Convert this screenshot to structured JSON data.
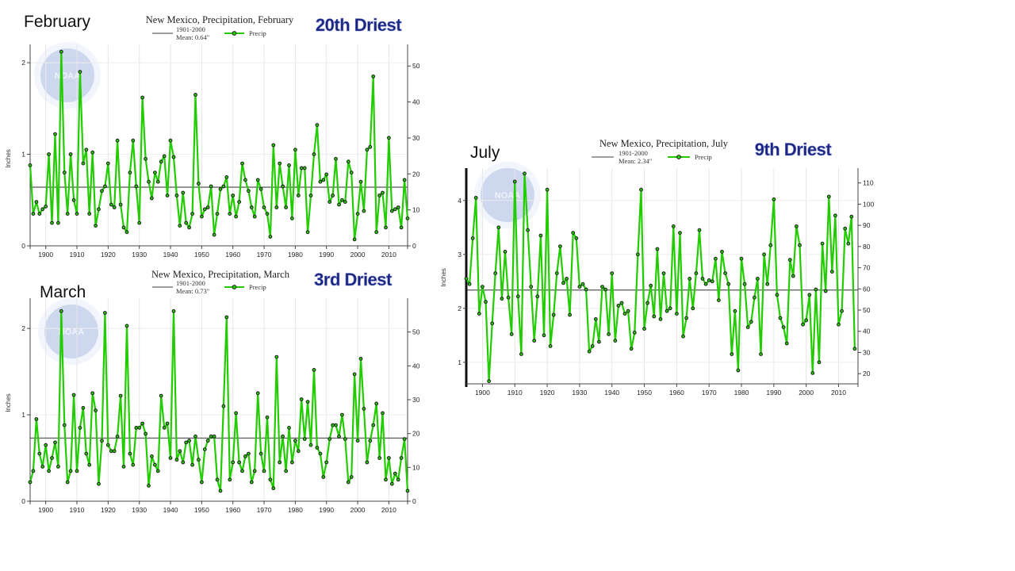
{
  "slide": {
    "labels": {
      "feb": "February",
      "mar": "March",
      "jul": "July"
    }
  },
  "colors": {
    "series": "#22cc00",
    "mean": "#666666",
    "marker": "#1a1a1a",
    "rank": "#1a237e"
  },
  "chart_data": [
    {
      "id": "feb",
      "type": "line",
      "title": "New Mexico, Precipitation, February",
      "rank_label": "20th Driest",
      "legend": {
        "mean_line": "1901-2000",
        "mean_value": "Mean: 0.64\"",
        "series": "Precip"
      },
      "ylabel": "Inches",
      "ylim": [
        0,
        2.2
      ],
      "yticks": [
        0,
        1,
        2
      ],
      "y2lim": [
        0,
        56
      ],
      "y2ticks": [
        0,
        10,
        20,
        30,
        40,
        50
      ],
      "xlim": [
        1895,
        2016
      ],
      "xticks": [
        1900,
        1910,
        1920,
        1930,
        1940,
        1950,
        1960,
        1970,
        1980,
        1990,
        2000,
        2010
      ],
      "mean": 0.64,
      "start_year": 1895,
      "values": [
        0.88,
        0.35,
        0.48,
        0.35,
        0.4,
        0.43,
        1.0,
        0.25,
        1.22,
        0.25,
        2.12,
        0.8,
        0.35,
        1.0,
        0.5,
        0.35,
        1.9,
        0.9,
        1.05,
        0.35,
        1.02,
        0.22,
        0.4,
        0.6,
        0.65,
        0.9,
        0.45,
        0.42,
        1.15,
        0.45,
        0.2,
        0.15,
        0.8,
        1.15,
        0.65,
        0.25,
        1.62,
        0.95,
        0.7,
        0.52,
        0.8,
        0.7,
        0.92,
        0.98,
        0.55,
        1.15,
        0.97,
        0.55,
        0.22,
        0.58,
        0.25,
        0.2,
        0.35,
        1.65,
        0.68,
        0.32,
        0.4,
        0.42,
        0.65,
        0.12,
        0.35,
        0.62,
        0.65,
        0.75,
        0.35,
        0.55,
        0.32,
        0.48,
        0.9,
        0.72,
        0.6,
        0.42,
        0.32,
        0.72,
        0.62,
        0.42,
        0.35,
        0.1,
        1.1,
        0.42,
        0.9,
        0.65,
        0.42,
        0.88,
        0.3,
        1.05,
        0.55,
        0.85,
        0.85,
        0.15,
        0.55,
        1.0,
        1.32,
        0.7,
        0.72,
        0.78,
        0.48,
        0.55,
        0.95,
        0.45,
        0.5,
        0.48,
        0.92,
        0.8,
        0.07,
        0.35,
        0.7,
        0.38,
        1.05,
        1.08,
        1.85,
        0.15,
        0.55,
        0.58,
        0.2,
        1.18,
        0.38,
        0.4,
        0.42,
        0.2,
        0.72,
        0.3
      ]
    },
    {
      "id": "mar",
      "type": "line",
      "title": "New Mexico, Precipitation, March",
      "rank_label": "3rd Driest",
      "legend": {
        "mean_line": "1901-2000",
        "mean_value": "Mean: 0.73\"",
        "series": "Precip"
      },
      "ylabel": "Inches",
      "ylim": [
        0,
        2.35
      ],
      "yticks": [
        0,
        1,
        2
      ],
      "y2lim": [
        0,
        60
      ],
      "y2ticks": [
        0,
        10,
        20,
        30,
        40,
        50
      ],
      "xlim": [
        1895,
        2016
      ],
      "xticks": [
        1900,
        1910,
        1920,
        1930,
        1940,
        1950,
        1960,
        1970,
        1980,
        1990,
        2000,
        2010
      ],
      "mean": 0.73,
      "start_year": 1895,
      "values": [
        0.22,
        0.35,
        0.95,
        0.55,
        0.4,
        0.65,
        0.35,
        0.5,
        0.68,
        0.4,
        2.2,
        0.88,
        0.22,
        0.35,
        1.23,
        0.35,
        0.85,
        1.08,
        0.55,
        0.42,
        1.25,
        1.05,
        0.2,
        0.7,
        2.18,
        0.65,
        0.58,
        0.58,
        0.75,
        1.22,
        0.4,
        2.03,
        0.55,
        0.42,
        0.85,
        0.85,
        0.9,
        0.78,
        0.18,
        0.52,
        0.42,
        0.35,
        1.22,
        0.85,
        0.9,
        0.5,
        2.2,
        0.48,
        0.58,
        0.45,
        0.68,
        0.7,
        0.42,
        0.75,
        0.48,
        0.22,
        0.6,
        0.7,
        0.75,
        0.75,
        0.25,
        0.12,
        1.1,
        2.13,
        0.25,
        0.45,
        1.02,
        0.45,
        0.35,
        0.52,
        0.55,
        0.22,
        0.35,
        1.25,
        0.55,
        0.35,
        0.97,
        0.25,
        0.15,
        1.67,
        0.45,
        0.75,
        0.35,
        0.85,
        0.45,
        0.7,
        0.58,
        1.18,
        0.72,
        1.15,
        0.65,
        1.52,
        0.62,
        0.55,
        0.28,
        0.45,
        0.72,
        0.88,
        0.88,
        0.75,
        1.0,
        0.72,
        0.22,
        0.28,
        1.47,
        0.7,
        1.65,
        1.07,
        0.45,
        0.7,
        0.88,
        1.13,
        0.5,
        1.02,
        0.25,
        0.5,
        0.2,
        0.32,
        0.25,
        0.5,
        0.72,
        0.12
      ]
    },
    {
      "id": "jul",
      "type": "line",
      "title": "New Mexico, Precipitation, July",
      "rank_label": "9th Driest",
      "legend": {
        "mean_line": "1901-2000",
        "mean_value": "Mean: 2.34\"",
        "series": "Precip"
      },
      "ylabel": "Inches",
      "ylim": [
        0.6,
        4.6
      ],
      "yticks": [
        1,
        2,
        3,
        4
      ],
      "y2lim": [
        15.2,
        117
      ],
      "y2ticks": [
        20,
        30,
        40,
        50,
        60,
        70,
        80,
        90,
        100,
        110
      ],
      "xlim": [
        1895,
        2016
      ],
      "xticks": [
        1900,
        1910,
        1920,
        1930,
        1940,
        1950,
        1960,
        1970,
        1980,
        1990,
        2000,
        2010
      ],
      "mean": 2.34,
      "start_year": 1895,
      "values": [
        2.55,
        2.45,
        3.3,
        4.05,
        1.9,
        2.4,
        2.12,
        0.65,
        1.72,
        2.65,
        3.5,
        2.18,
        3.05,
        2.2,
        1.52,
        4.35,
        2.22,
        1.15,
        4.5,
        3.45,
        2.4,
        1.4,
        2.22,
        3.35,
        1.5,
        4.2,
        1.3,
        1.88,
        2.65,
        3.15,
        2.47,
        2.55,
        1.88,
        3.4,
        3.3,
        2.4,
        2.45,
        2.35,
        1.2,
        1.3,
        1.8,
        1.38,
        2.4,
        2.35,
        1.52,
        2.65,
        1.4,
        2.05,
        2.1,
        1.9,
        1.95,
        1.25,
        1.55,
        3.0,
        4.2,
        1.62,
        2.1,
        2.42,
        1.85,
        3.1,
        1.8,
        2.65,
        1.95,
        2.0,
        3.52,
        1.9,
        3.4,
        1.48,
        1.82,
        2.55,
        2.0,
        2.65,
        3.45,
        2.55,
        2.45,
        2.52,
        2.5,
        2.92,
        2.15,
        3.05,
        2.65,
        2.45,
        1.15,
        1.95,
        0.85,
        2.92,
        2.45,
        1.65,
        1.75,
        2.2,
        2.55,
        1.15,
        3.0,
        2.45,
        3.17,
        4.02,
        2.25,
        1.82,
        1.65,
        1.35,
        2.9,
        2.6,
        3.52,
        3.17,
        1.7,
        1.78,
        2.25,
        0.8,
        2.35,
        1.0,
        3.2,
        2.32,
        4.07,
        2.68,
        3.72,
        1.7,
        1.95,
        3.48,
        3.2,
        3.7,
        1.25
      ]
    }
  ]
}
